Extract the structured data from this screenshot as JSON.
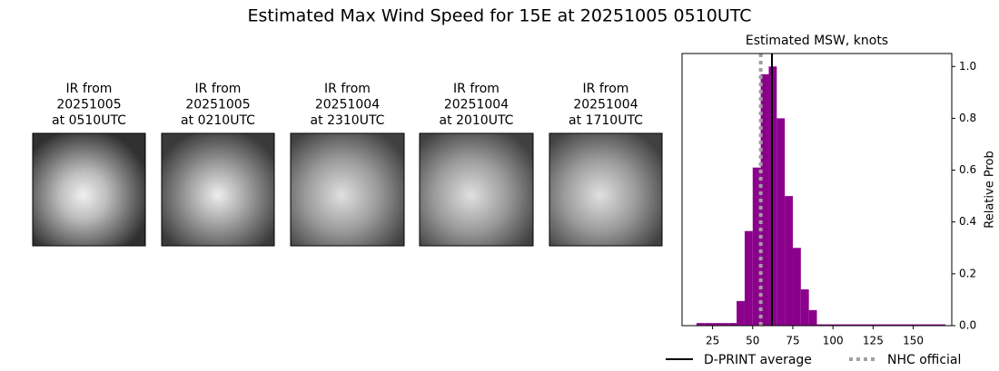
{
  "title": "Estimated Max Wind Speed for 15E at 20251005 0510UTC",
  "panels": [
    {
      "lines": [
        "IR from",
        "20251005",
        "at 0510UTC"
      ]
    },
    {
      "lines": [
        "IR from",
        "20251005",
        "at 0210UTC"
      ]
    },
    {
      "lines": [
        "IR from",
        "20251004",
        "at 2310UTC"
      ]
    },
    {
      "lines": [
        "IR from",
        "20251004",
        "at 2010UTC"
      ]
    },
    {
      "lines": [
        "IR from",
        "20251004",
        "at 1710UTC"
      ]
    }
  ],
  "chart_data": {
    "type": "histogram",
    "title": "Estimated MSW, knots",
    "y_label": "Relative Prob",
    "y_axis_side": "right",
    "bins": [
      15,
      20,
      25,
      30,
      35,
      40,
      45,
      50,
      55,
      60,
      65,
      70,
      75,
      80,
      85,
      90,
      95,
      100,
      105,
      110,
      115,
      120,
      125,
      130,
      135,
      140,
      145,
      150,
      155,
      160,
      165,
      170
    ],
    "values": [
      0.01,
      0.01,
      0.01,
      0.01,
      0.01,
      0.095,
      0.365,
      0.61,
      0.97,
      1.0,
      0.8,
      0.5,
      0.3,
      0.14,
      0.06,
      0.005,
      0.005,
      0.005,
      0.005,
      0.005,
      0.005,
      0.005,
      0.005,
      0.005,
      0.005,
      0.005,
      0.005,
      0.005,
      0.005,
      0.005,
      0.005
    ],
    "color": "#8b008b",
    "xlim": [
      6,
      174
    ],
    "xticks": [
      25,
      50,
      75,
      100,
      125,
      150
    ],
    "ylim": [
      0,
      1.05
    ],
    "yticks": [
      {
        "value": 0,
        "label": "0.0"
      },
      0.2,
      0.4,
      0.6,
      0.8,
      {
        "value": 1,
        "label": "1.0"
      }
    ],
    "lines": [
      {
        "name": "D-PRINT average",
        "value": 62,
        "color": "#000000",
        "style": "solid"
      },
      {
        "name": "NHC official",
        "value": 55,
        "color": "#a0a0a0",
        "style": "dotted"
      }
    ]
  }
}
